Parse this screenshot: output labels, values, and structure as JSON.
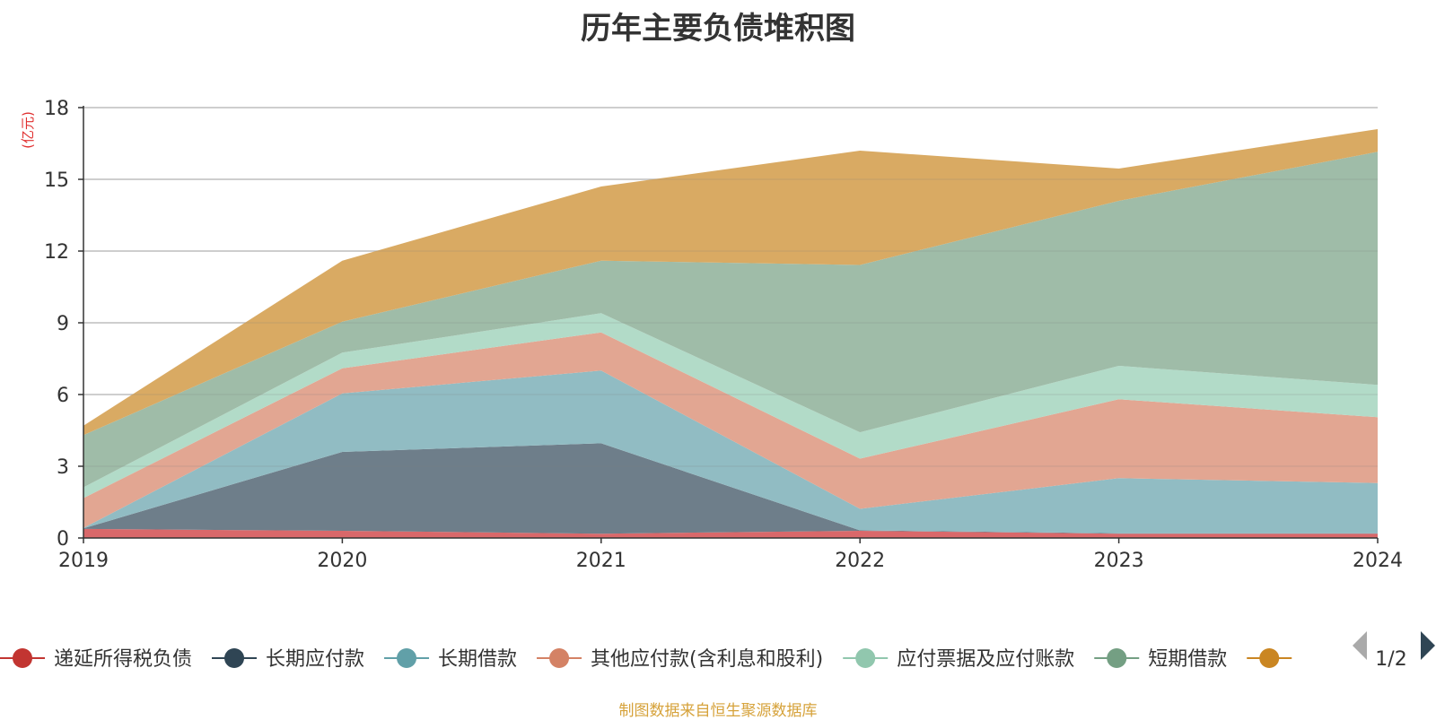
{
  "page": {
    "title": "历年主要负债堆积图",
    "unit_label": "(亿元)",
    "source_note": "制图数据来自恒生聚源数据库",
    "source_color": "#d6a23a",
    "unit_color": "#e03030"
  },
  "legend": {
    "page_indicator": "1/2",
    "prev_icon": "triangle-left-icon",
    "next_icon": "triangle-right-icon"
  },
  "chart_data": {
    "type": "area",
    "stacked": true,
    "title": "历年主要负债堆积图",
    "ylabel": "(亿元)",
    "xlabel": "",
    "x": [
      "2019",
      "2020",
      "2021",
      "2022",
      "2023",
      "2024"
    ],
    "yticks": [
      "0",
      "3",
      "6",
      "9",
      "12",
      "15",
      "18"
    ],
    "ylim": [
      0,
      18
    ],
    "grid": true,
    "legend_position": "bottom",
    "series": [
      {
        "name": "递延所得税负债",
        "color": "#c23531",
        "fill": "#d9686a",
        "values": [
          0.38,
          0.3,
          0.18,
          0.3,
          0.18,
          0.18
        ]
      },
      {
        "name": "长期应付款",
        "color": "#2f4554",
        "fill": "#6e7e8a",
        "values": [
          0.02,
          3.3,
          3.78,
          0.02,
          0.02,
          0.02
        ]
      },
      {
        "name": "长期借款",
        "color": "#61a0a8",
        "fill": "#91bcc3",
        "values": [
          0.02,
          2.45,
          3.04,
          0.9,
          2.3,
          2.1
        ]
      },
      {
        "name": "其他应付款(含利息和股利)",
        "color": "#d48265",
        "fill": "#e2a692",
        "values": [
          1.25,
          1.05,
          1.6,
          2.1,
          3.3,
          2.75
        ]
      },
      {
        "name": "应付票据及应付账款",
        "color": "#91c7ae",
        "fill": "#b2dbc8",
        "values": [
          0.45,
          0.65,
          0.8,
          1.1,
          1.4,
          1.35
        ]
      },
      {
        "name": "短期借款",
        "color": "#749f83",
        "fill": "#9fbca8",
        "values": [
          2.18,
          1.3,
          2.2,
          7.0,
          6.9,
          9.75
        ]
      },
      {
        "name": "",
        "color": "#ca8622",
        "fill": "#d9aa63",
        "values": [
          0.4,
          2.55,
          3.1,
          4.78,
          1.35,
          0.95
        ]
      }
    ]
  }
}
